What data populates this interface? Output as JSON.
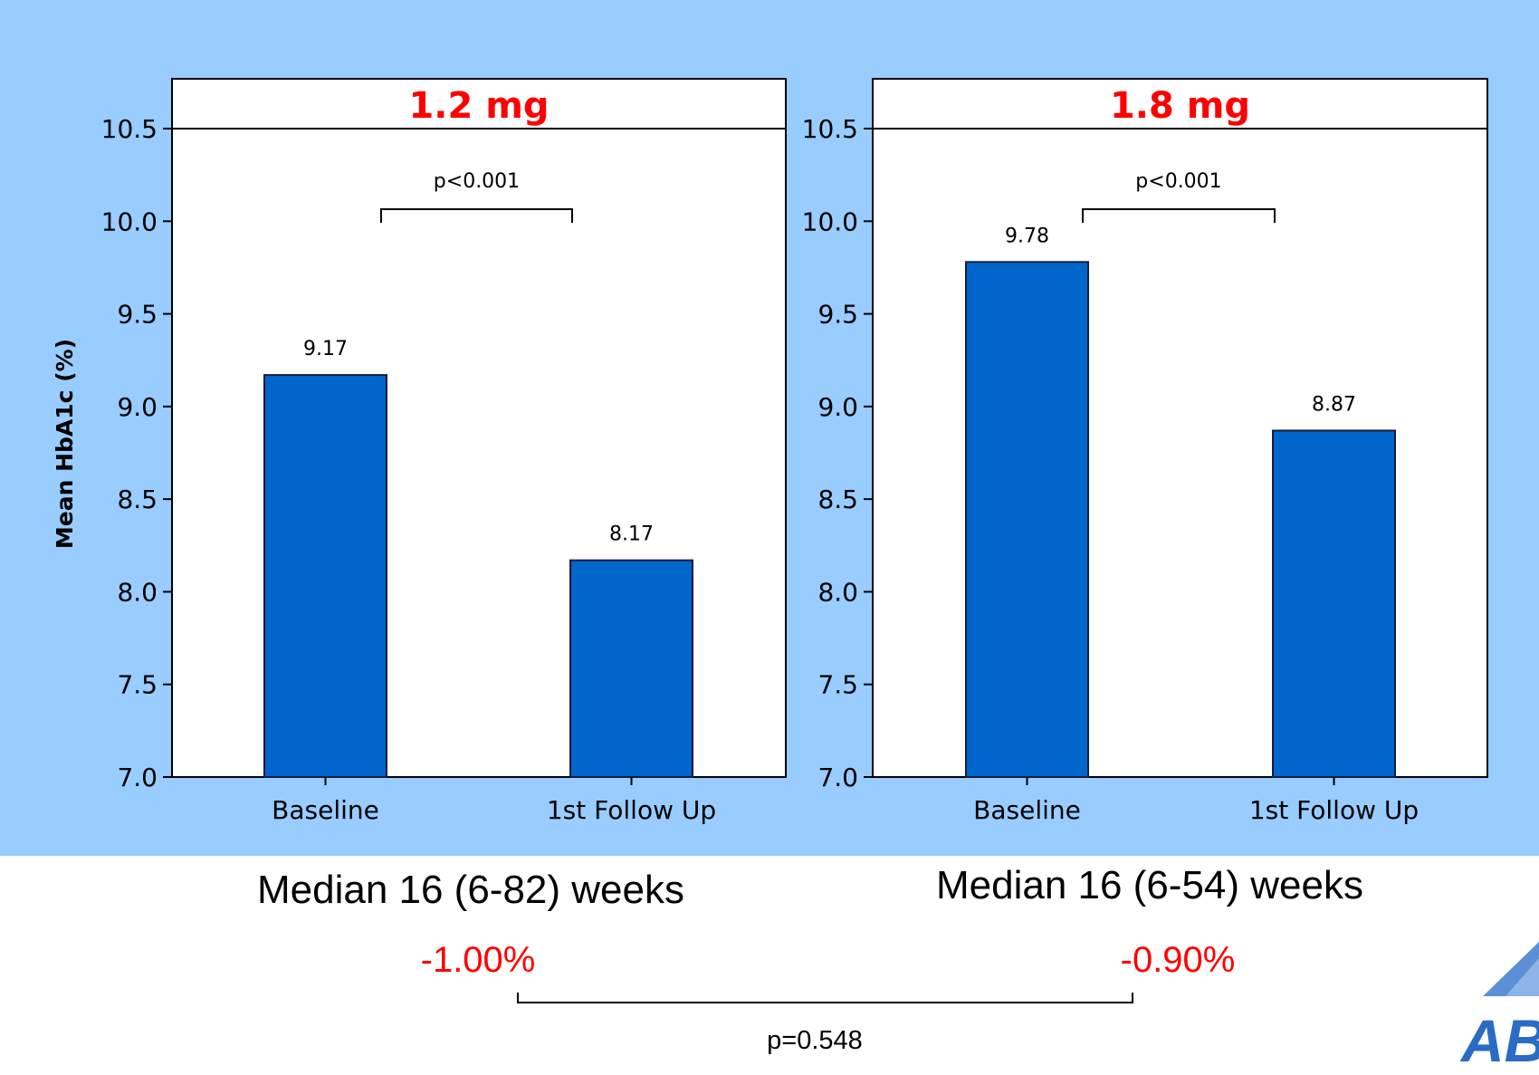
{
  "chart_data": [
    {
      "type": "bar",
      "title": "1.2 mg",
      "ylabel": "Mean HbA1c (%)",
      "categories": [
        "Baseline",
        "1st Follow Up"
      ],
      "values": [
        9.17,
        8.17
      ],
      "data_labels": [
        "9.17",
        "8.17"
      ],
      "ylim": [
        7.0,
        10.5
      ],
      "yticks": [
        "7.0",
        "7.5",
        "8.0",
        "8.5",
        "9.0",
        "9.5",
        "10.0",
        "10.5"
      ],
      "bar_color": "#0066cc",
      "title_color": "#ff0000",
      "significance": "p<0.001",
      "grid": false
    },
    {
      "type": "bar",
      "title": "1.8 mg",
      "categories": [
        "Baseline",
        "1st Follow Up"
      ],
      "values": [
        9.78,
        8.87
      ],
      "data_labels": [
        "9.78",
        "8.87"
      ],
      "ylim": [
        7.0,
        10.5
      ],
      "yticks": [
        "7.0",
        "7.5",
        "8.0",
        "8.5",
        "9.0",
        "9.5",
        "10.0",
        "10.5"
      ],
      "bar_color": "#0066cc",
      "title_color": "#ff0000",
      "significance": "p<0.001",
      "grid": false
    }
  ],
  "footer": {
    "left_duration": "Median 16 (6-82) weeks",
    "right_duration": "Median 16 (6-54) weeks",
    "left_change": "-1.00%",
    "right_change": "-0.90%",
    "overall_p": "p=0.548"
  },
  "logo": {
    "text": "ABC"
  },
  "colors": {
    "background_band": "#99ccff",
    "change_text": "#ff0000"
  }
}
